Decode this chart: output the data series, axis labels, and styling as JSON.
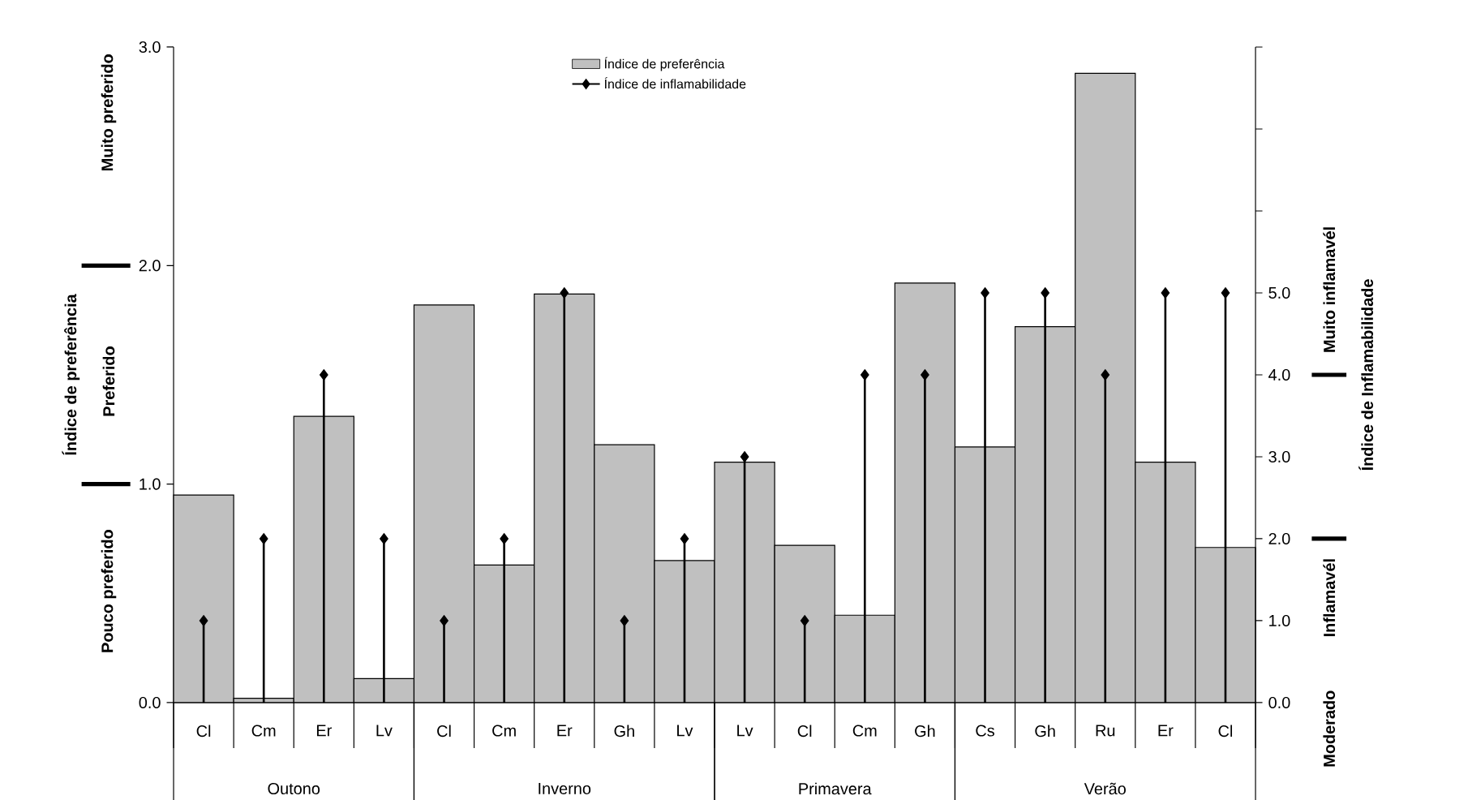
{
  "chart_data": {
    "type": "bar",
    "categories": [
      "Cl",
      "Cm",
      "Er",
      "Lv",
      "Cl",
      "Cm",
      "Er",
      "Gh",
      "Lv",
      "Lv",
      "Cl",
      "Cm",
      "Gh",
      "Cs",
      "Gh",
      "Ru",
      "Er",
      "Cl"
    ],
    "ylabel": "Índice de preferência",
    "y2label": "Índice de Inflamabilidade",
    "ylim": [
      0,
      3
    ],
    "yticks": [
      {
        "value": 0,
        "label": "0.0"
      },
      {
        "value": 1,
        "label": "1.0"
      },
      {
        "value": 2,
        "label": "2.0"
      },
      {
        "value": 3,
        "label": "3.0"
      }
    ],
    "y2lim": [
      0,
      8
    ],
    "y2ticks": [
      {
        "value": 0,
        "label": "0.0"
      },
      {
        "value": 1,
        "label": "1.0"
      },
      {
        "value": 2,
        "label": "2.0"
      },
      {
        "value": 3,
        "label": "3.0"
      },
      {
        "value": 4,
        "label": "4.0"
      },
      {
        "value": 5,
        "label": "5.0"
      },
      {
        "value": 6,
        "label": null
      },
      {
        "value": 7,
        "label": null
      },
      {
        "value": 8,
        "label": null
      }
    ],
    "legend": "top",
    "annotations": [
      "Muito preferido",
      "Preferido",
      "Pouco preferido",
      "Muito inflamavél",
      "Inflamavél",
      "Moderado",
      "Outono",
      "Inverno",
      "Primavera",
      "Verão"
    ],
    "series": [
      {
        "name": "Índice de preferência",
        "type": "bar",
        "color": "#c0c0c0",
        "values": [
          0.95,
          0.02,
          1.31,
          0.11,
          1.82,
          0.63,
          1.87,
          1.18,
          0.65,
          1.1,
          0.72,
          0.4,
          1.92,
          1.17,
          1.72,
          2.88,
          1.1,
          0.71
        ]
      },
      {
        "name": "Índice de inflamabilidade",
        "type": "lollipop",
        "axis": "y2",
        "color": "#000000",
        "marker": "diamond",
        "values": [
          1,
          2,
          4,
          2,
          1,
          2,
          5,
          1,
          2,
          3,
          1,
          4,
          4,
          5,
          5,
          4,
          5,
          5
        ]
      }
    ]
  }
}
